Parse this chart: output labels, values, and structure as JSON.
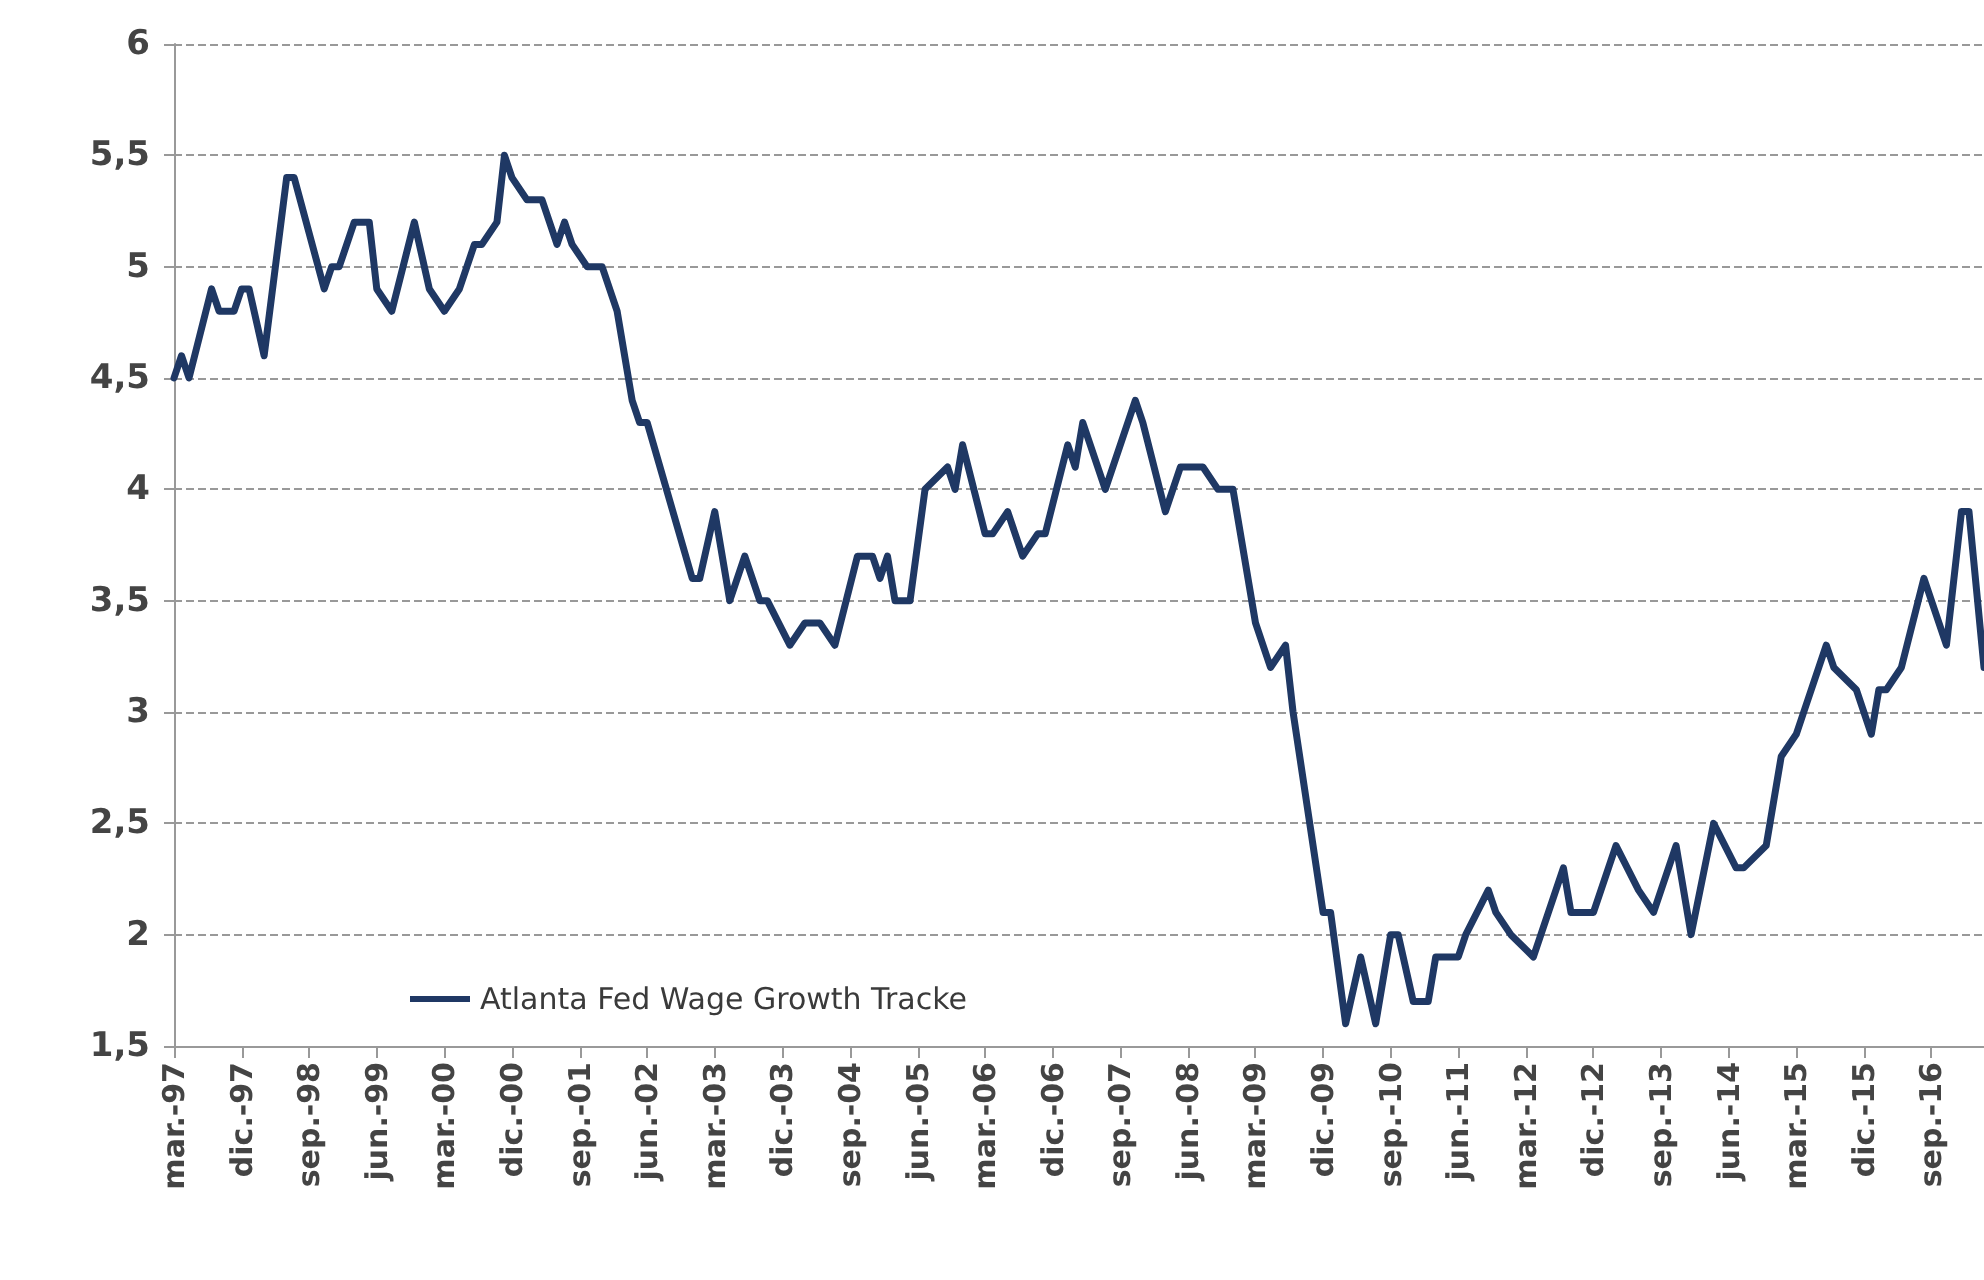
{
  "chart_data": {
    "type": "line",
    "x": [
      "1997-03",
      "1997-04",
      "1997-05",
      "1997-08",
      "1997-09",
      "1997-11",
      "1997-12",
      "1998-01",
      "1998-03",
      "1998-06",
      "1998-07",
      "1998-11",
      "1998-12",
      "1999-01",
      "1999-03",
      "1999-05",
      "1999-06",
      "1999-08",
      "1999-11",
      "2000-01",
      "2000-03",
      "2000-05",
      "2000-07",
      "2000-08",
      "2000-10",
      "2000-11",
      "2000-12",
      "2001-02",
      "2001-04",
      "2001-06",
      "2001-07",
      "2001-08",
      "2001-10",
      "2001-12",
      "2002-02",
      "2002-04",
      "2002-05",
      "2002-06",
      "2002-12",
      "2003-01",
      "2003-03",
      "2003-05",
      "2003-07",
      "2003-09",
      "2003-10",
      "2004-01",
      "2004-03",
      "2004-05",
      "2004-07",
      "2004-10",
      "2004-12",
      "2005-01",
      "2005-02",
      "2005-03",
      "2005-05",
      "2005-07",
      "2005-10",
      "2005-11",
      "2005-12",
      "2006-03",
      "2006-04",
      "2006-06",
      "2006-08",
      "2006-10",
      "2006-11",
      "2007-02",
      "2007-03",
      "2007-04",
      "2007-07",
      "2007-11",
      "2007-12",
      "2008-03",
      "2008-05",
      "2008-08",
      "2008-10",
      "2008-12",
      "2009-03",
      "2009-05",
      "2009-07",
      "2009-08",
      "2009-12",
      "2010-01",
      "2010-03",
      "2010-05",
      "2010-07",
      "2010-09",
      "2010-10",
      "2010-12",
      "2011-02",
      "2011-03",
      "2011-06",
      "2011-07",
      "2011-10",
      "2011-11",
      "2012-01",
      "2012-04",
      "2012-07",
      "2012-08",
      "2012-09",
      "2012-12",
      "2013-03",
      "2013-06",
      "2013-08",
      "2013-11",
      "2014-01",
      "2014-04",
      "2014-07",
      "2014-08",
      "2014-11",
      "2015-01",
      "2015-03",
      "2015-04",
      "2015-07",
      "2015-08",
      "2015-11",
      "2016-01",
      "2016-02",
      "2016-03",
      "2016-05",
      "2016-08",
      "2016-11",
      "2017-01",
      "2017-02",
      "2017-04"
    ],
    "series": [
      {
        "name": "Atlanta Fed Wage Growth Tracke",
        "color": "#1f3864",
        "values": [
          4.5,
          4.6,
          4.5,
          4.9,
          4.8,
          4.8,
          4.9,
          4.9,
          4.6,
          5.4,
          5.4,
          4.9,
          5.0,
          5.0,
          5.2,
          5.2,
          4.9,
          4.8,
          5.2,
          4.9,
          4.8,
          4.9,
          5.1,
          5.1,
          5.2,
          5.5,
          5.4,
          5.3,
          5.3,
          5.1,
          5.2,
          5.1,
          5.0,
          5.0,
          4.8,
          4.4,
          4.3,
          4.3,
          3.6,
          3.6,
          3.9,
          3.5,
          3.7,
          3.5,
          3.5,
          3.3,
          3.4,
          3.4,
          3.3,
          3.7,
          3.7,
          3.6,
          3.7,
          3.5,
          3.5,
          4.0,
          4.1,
          4.0,
          4.2,
          3.8,
          3.8,
          3.9,
          3.7,
          3.8,
          3.8,
          4.2,
          4.1,
          4.3,
          4.0,
          4.4,
          4.3,
          3.9,
          4.1,
          4.1,
          4.0,
          4.0,
          3.4,
          3.2,
          3.3,
          3.0,
          2.1,
          2.1,
          1.6,
          1.9,
          1.6,
          2.0,
          2.0,
          1.7,
          1.7,
          1.9,
          1.9,
          2.0,
          2.2,
          2.1,
          2.0,
          1.9,
          2.2,
          2.3,
          2.1,
          2.1,
          2.4,
          2.2,
          2.1,
          2.4,
          2.0,
          2.5,
          2.3,
          2.3,
          2.4,
          2.8,
          2.9,
          3.0,
          3.3,
          3.2,
          3.1,
          2.9,
          3.1,
          3.1,
          3.2,
          3.6,
          3.3,
          3.9,
          3.9,
          3.2
        ]
      }
    ],
    "xlim": [
      "1997-03",
      "2017-04"
    ],
    "xticks": [
      {
        "value": "1997-03",
        "label": "mar.-97"
      },
      {
        "value": "1997-12",
        "label": "dic.-97"
      },
      {
        "value": "1998-09",
        "label": "sep.-98"
      },
      {
        "value": "1999-06",
        "label": "jun.-99"
      },
      {
        "value": "2000-03",
        "label": "mar.-00"
      },
      {
        "value": "2000-12",
        "label": "dic.-00"
      },
      {
        "value": "2001-09",
        "label": "sep.-01"
      },
      {
        "value": "2002-06",
        "label": "jun.-02"
      },
      {
        "value": "2003-03",
        "label": "mar.-03"
      },
      {
        "value": "2003-12",
        "label": "dic.-03"
      },
      {
        "value": "2004-09",
        "label": "sep.-04"
      },
      {
        "value": "2005-06",
        "label": "jun.-05"
      },
      {
        "value": "2006-03",
        "label": "mar.-06"
      },
      {
        "value": "2006-12",
        "label": "dic.-06"
      },
      {
        "value": "2007-09",
        "label": "sep.-07"
      },
      {
        "value": "2008-06",
        "label": "jun.-08"
      },
      {
        "value": "2009-03",
        "label": "mar.-09"
      },
      {
        "value": "2009-12",
        "label": "dic.-09"
      },
      {
        "value": "2010-09",
        "label": "sep.-10"
      },
      {
        "value": "2011-06",
        "label": "jun.-11"
      },
      {
        "value": "2012-03",
        "label": "mar.-12"
      },
      {
        "value": "2012-12",
        "label": "dic.-12"
      },
      {
        "value": "2013-09",
        "label": "sep.-13"
      },
      {
        "value": "2014-06",
        "label": "jun.-14"
      },
      {
        "value": "2015-03",
        "label": "mar.-15"
      },
      {
        "value": "2015-12",
        "label": "dic.-15"
      },
      {
        "value": "2016-09",
        "label": "sep.-16"
      }
    ],
    "ylim": [
      1.5,
      6
    ],
    "yticks": [
      {
        "value": 1.5,
        "label": "1,5"
      },
      2,
      {
        "value": 2.5,
        "label": "2,5"
      },
      3,
      {
        "value": 3.5,
        "label": "3,5"
      },
      4,
      {
        "value": 4.5,
        "label": "4,5"
      },
      5,
      {
        "value": 5.5,
        "label": "5,5"
      },
      6
    ],
    "grid": "y",
    "legend": "bottom left",
    "marker": "none",
    "line_style": "solid"
  }
}
